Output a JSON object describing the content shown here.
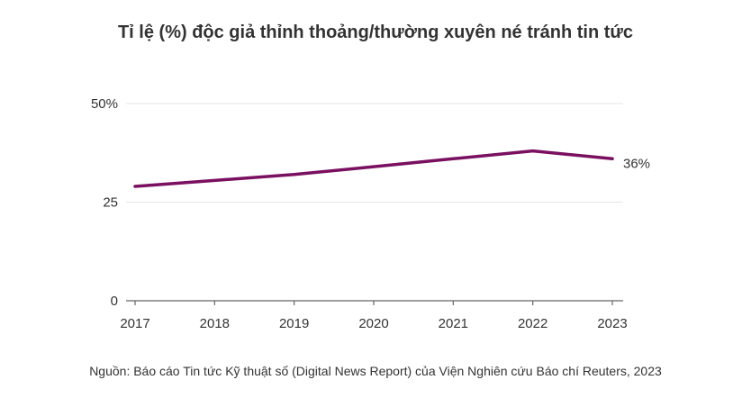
{
  "title": "Tỉ lệ (%) độc giả thỉnh thoảng/thường xuyên né tránh tin tức",
  "source": "Nguồn: Báo cáo Tin tức Kỹ thuật số (Digital News Report) của Viện Nghiên cứu Báo chí Reuters, 2023",
  "colors": {
    "line": "#7a1060",
    "grid": "#e6e6e6",
    "axis": "#666666",
    "text": "#333333"
  },
  "chart_data": {
    "type": "line",
    "title": "Tỉ lệ (%) độc giả thỉnh thoảng/thường xuyên né tránh tin tức",
    "x": [
      "2017",
      "2018",
      "2019",
      "2020",
      "2021",
      "2022",
      "2023"
    ],
    "series": [
      {
        "values": [
          29,
          30.5,
          32,
          34,
          36,
          38,
          36
        ]
      }
    ],
    "ylim": [
      0,
      50
    ],
    "yticks": [
      {
        "value": 0,
        "label": "0"
      },
      {
        "value": 25,
        "label": "25"
      },
      {
        "value": 50,
        "label": "50%"
      }
    ],
    "end_label": "36%",
    "grid": true,
    "legend": "none"
  }
}
